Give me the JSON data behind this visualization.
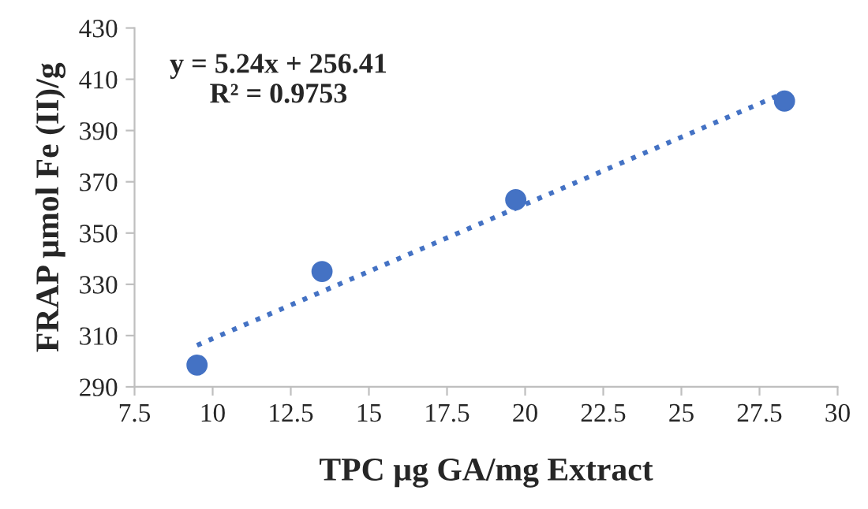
{
  "chart_data": {
    "type": "scatter",
    "xlabel": "TPC µg GA/mg Extract",
    "ylabel": "FRAP µmol Fe (II)/g",
    "x": [
      9.5,
      13.5,
      19.7,
      28.3
    ],
    "series": [
      {
        "color": "#4472c4",
        "values": [
          298.5,
          335,
          363,
          401.5
        ],
        "marker": "circle"
      },
      {
        "type": "line",
        "color": "#4472c4",
        "x": [
          9.5,
          28.3
        ],
        "values": [
          306.2,
          404.7
        ],
        "line_style": "dotted",
        "marker": "none"
      }
    ],
    "annotations": [
      {
        "text": "y = 5.24x + 256.41\nR² = 0.9753"
      }
    ],
    "xlim": [
      7.5,
      30
    ],
    "xticks": [
      {
        "value": 7.5,
        "label": "7.5"
      },
      10,
      {
        "value": 12.5,
        "label": "12.5"
      },
      15,
      {
        "value": 17.5,
        "label": "17.5"
      },
      20,
      {
        "value": 22.5,
        "label": "22.5"
      },
      25,
      {
        "value": 27.5,
        "label": "27.5"
      },
      30
    ],
    "ylim": [
      290,
      430
    ],
    "yticks": [
      290,
      310,
      330,
      350,
      370,
      390,
      410,
      430
    ],
    "grid": false,
    "legend": false
  }
}
